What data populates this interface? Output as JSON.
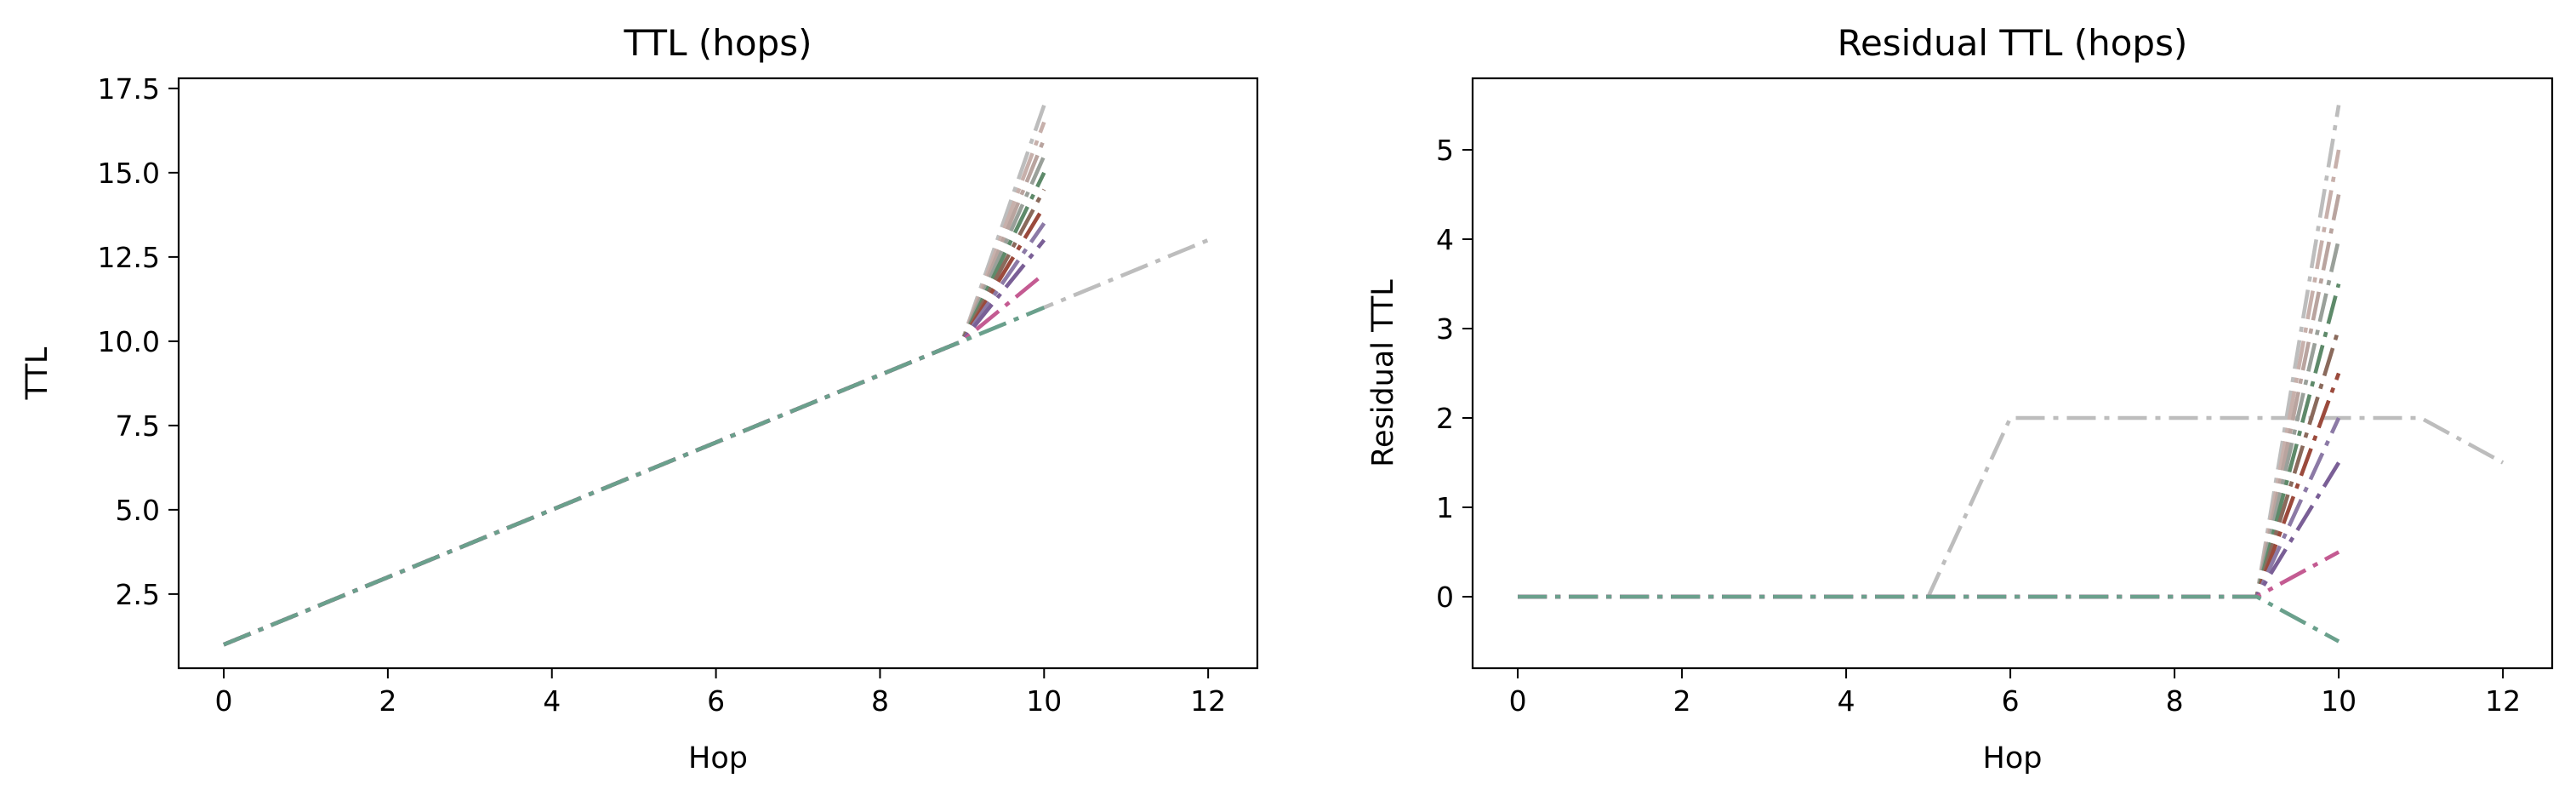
{
  "chart_data": [
    {
      "type": "line",
      "title": "TTL (hops)",
      "xlabel": "Hop",
      "ylabel": "TTL",
      "xlim": [
        -0.55,
        12.6
      ],
      "ylim": [
        0.3,
        17.8
      ],
      "xticks": [
        0,
        2,
        4,
        6,
        8,
        10,
        12
      ],
      "xtick_labels": [
        "0",
        "2",
        "4",
        "6",
        "8",
        "10",
        "12"
      ],
      "yticks": [
        2.5,
        5.0,
        7.5,
        10.0,
        12.5,
        15.0,
        17.5
      ],
      "ytick_labels": [
        "2.5",
        "5.0",
        "7.5",
        "10.0",
        "12.5",
        "15.0",
        "17.5"
      ],
      "grid": false,
      "series": [
        {
          "color": "#bdbdbd",
          "x": [
            0,
            1,
            2,
            3,
            4,
            5,
            6,
            7,
            8,
            9,
            10,
            11,
            12
          ],
          "y": [
            1,
            2,
            3,
            4,
            5,
            6,
            7,
            8,
            9,
            10,
            11,
            12,
            13
          ]
        },
        {
          "color": "#bdbdbd",
          "x": [
            0,
            1,
            2,
            3,
            4,
            5,
            6,
            7,
            8,
            9,
            10
          ],
          "y": [
            1,
            2,
            3,
            4,
            5,
            6,
            7,
            8,
            9,
            10,
            17
          ]
        },
        {
          "color": "#c7b0ab",
          "x": [
            0,
            1,
            2,
            3,
            4,
            5,
            6,
            7,
            8,
            9,
            10
          ],
          "y": [
            1,
            2,
            3,
            4,
            5,
            6,
            7,
            8,
            9,
            10,
            16.5
          ]
        },
        {
          "color": "#b9a49f",
          "x": [
            0,
            1,
            2,
            3,
            4,
            5,
            6,
            7,
            8,
            9,
            10
          ],
          "y": [
            1,
            2,
            3,
            4,
            5,
            6,
            7,
            8,
            9,
            10,
            16
          ]
        },
        {
          "color": "#9aa09a",
          "x": [
            0,
            1,
            2,
            3,
            4,
            5,
            6,
            7,
            8,
            9,
            10
          ],
          "y": [
            1,
            2,
            3,
            4,
            5,
            6,
            7,
            8,
            9,
            10,
            15.5
          ]
        },
        {
          "color": "#5e8a6a",
          "x": [
            0,
            1,
            2,
            3,
            4,
            5,
            6,
            7,
            8,
            9,
            10
          ],
          "y": [
            1,
            2,
            3,
            4,
            5,
            6,
            7,
            8,
            9,
            10,
            15
          ]
        },
        {
          "color": "#8a6a5c",
          "x": [
            0,
            1,
            2,
            3,
            4,
            5,
            6,
            7,
            8,
            9,
            10
          ],
          "y": [
            1,
            2,
            3,
            4,
            5,
            6,
            7,
            8,
            9,
            10,
            14.5
          ]
        },
        {
          "color": "#9b4a3c",
          "x": [
            0,
            1,
            2,
            3,
            4,
            5,
            6,
            7,
            8,
            9,
            10
          ],
          "y": [
            1,
            2,
            3,
            4,
            5,
            6,
            7,
            8,
            9,
            10,
            14
          ]
        },
        {
          "color": "#8c7aa6",
          "x": [
            0,
            1,
            2,
            3,
            4,
            5,
            6,
            7,
            8,
            9,
            10
          ],
          "y": [
            1,
            2,
            3,
            4,
            5,
            6,
            7,
            8,
            9,
            10,
            13.5
          ]
        },
        {
          "color": "#7a5f96",
          "x": [
            0,
            1,
            2,
            3,
            4,
            5,
            6,
            7,
            8,
            9,
            10
          ],
          "y": [
            1,
            2,
            3,
            4,
            5,
            6,
            7,
            8,
            9,
            10,
            13
          ]
        },
        {
          "color": "#c45b92",
          "x": [
            0,
            1,
            2,
            3,
            4,
            5,
            6,
            7,
            8,
            9,
            10
          ],
          "y": [
            1,
            2,
            3,
            4,
            5,
            6,
            7,
            8,
            9,
            10,
            12
          ]
        },
        {
          "color": "#6aa08c",
          "x": [
            0,
            1,
            2,
            3,
            4,
            5,
            6,
            7,
            8,
            9,
            10
          ],
          "y": [
            1,
            2,
            3,
            4,
            5,
            6,
            7,
            8,
            9,
            10,
            11
          ]
        }
      ]
    },
    {
      "type": "line",
      "title": "Residual TTL (hops)",
      "xlabel": "Hop",
      "ylabel": "Residual TTL",
      "xlim": [
        -0.55,
        12.6
      ],
      "ylim": [
        -0.8,
        5.8
      ],
      "xticks": [
        0,
        2,
        4,
        6,
        8,
        10,
        12
      ],
      "xtick_labels": [
        "0",
        "2",
        "4",
        "6",
        "8",
        "10",
        "12"
      ],
      "yticks": [
        0,
        1,
        2,
        3,
        4,
        5
      ],
      "ytick_labels": [
        "0",
        "1",
        "2",
        "3",
        "4",
        "5"
      ],
      "grid": false,
      "series": [
        {
          "color": "#bdbdbd",
          "x": [
            0,
            1,
            2,
            3,
            4,
            5,
            6,
            7,
            8,
            9,
            10,
            11,
            12
          ],
          "y": [
            0,
            0,
            0,
            0,
            0,
            0,
            2,
            2,
            2,
            2,
            2,
            2,
            1.5
          ]
        },
        {
          "color": "#bdbdbd",
          "x": [
            0,
            1,
            2,
            3,
            4,
            5,
            6,
            7,
            8,
            9,
            10
          ],
          "y": [
            0,
            0,
            0,
            0,
            0,
            0,
            0,
            0,
            0,
            0,
            5.5
          ]
        },
        {
          "color": "#c7b0ab",
          "x": [
            0,
            1,
            2,
            3,
            4,
            5,
            6,
            7,
            8,
            9,
            10
          ],
          "y": [
            0,
            0,
            0,
            0,
            0,
            0,
            0,
            0,
            0,
            0,
            5
          ]
        },
        {
          "color": "#b9a49f",
          "x": [
            0,
            1,
            2,
            3,
            4,
            5,
            6,
            7,
            8,
            9,
            10
          ],
          "y": [
            0,
            0,
            0,
            0,
            0,
            0,
            0,
            0,
            0,
            0,
            4.5
          ]
        },
        {
          "color": "#9aa09a",
          "x": [
            0,
            1,
            2,
            3,
            4,
            5,
            6,
            7,
            8,
            9,
            10
          ],
          "y": [
            0,
            0,
            0,
            0,
            0,
            0,
            0,
            0,
            0,
            0,
            4
          ]
        },
        {
          "color": "#5e8a6a",
          "x": [
            0,
            1,
            2,
            3,
            4,
            5,
            6,
            7,
            8,
            9,
            10
          ],
          "y": [
            0,
            0,
            0,
            0,
            0,
            0,
            0,
            0,
            0,
            0,
            3.5
          ]
        },
        {
          "color": "#8a6a5c",
          "x": [
            0,
            1,
            2,
            3,
            4,
            5,
            6,
            7,
            8,
            9,
            10
          ],
          "y": [
            0,
            0,
            0,
            0,
            0,
            0,
            0,
            0,
            0,
            0,
            3
          ]
        },
        {
          "color": "#9b4a3c",
          "x": [
            0,
            1,
            2,
            3,
            4,
            5,
            6,
            7,
            8,
            9,
            10
          ],
          "y": [
            0,
            0,
            0,
            0,
            0,
            0,
            0,
            0,
            0,
            0,
            2.5
          ]
        },
        {
          "color": "#8c7aa6",
          "x": [
            0,
            1,
            2,
            3,
            4,
            5,
            6,
            7,
            8,
            9,
            10
          ],
          "y": [
            0,
            0,
            0,
            0,
            0,
            0,
            0,
            0,
            0,
            0,
            2
          ]
        },
        {
          "color": "#7a5f96",
          "x": [
            0,
            1,
            2,
            3,
            4,
            5,
            6,
            7,
            8,
            9,
            10
          ],
          "y": [
            0,
            0,
            0,
            0,
            0,
            0,
            0,
            0,
            0,
            0,
            1.5
          ]
        },
        {
          "color": "#c45b92",
          "x": [
            0,
            1,
            2,
            3,
            4,
            5,
            6,
            7,
            8,
            9,
            10
          ],
          "y": [
            0,
            0,
            0,
            0,
            0,
            0,
            0,
            0,
            0,
            0,
            0.5
          ]
        },
        {
          "color": "#6aa08c",
          "x": [
            0,
            1,
            2,
            3,
            4,
            5,
            6,
            7,
            8,
            9,
            10
          ],
          "y": [
            0,
            0,
            0,
            0,
            0,
            0,
            0,
            0,
            0,
            0,
            -0.5
          ]
        }
      ]
    }
  ]
}
